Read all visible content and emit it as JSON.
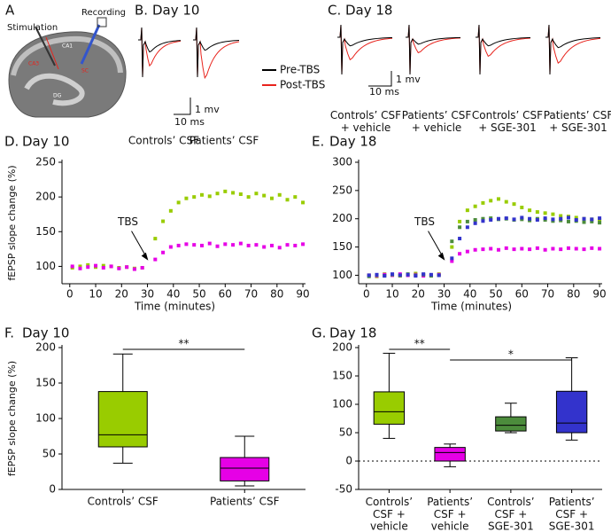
{
  "diagram": {
    "panel": "A",
    "labels": [
      "Stimulation",
      "Recording",
      "CA1",
      "SC",
      "CA3",
      "DG"
    ]
  },
  "traces": [
    {
      "panel": "B.",
      "day": "Day 10",
      "scale_y": "1 mv",
      "scale_x": "10 ms",
      "conditions": [
        "Controls’ CSF",
        "Patients’ CSF"
      ],
      "legend": [
        {
          "name": "Pre-TBS",
          "color": "#000000"
        },
        {
          "name": "Post-TBS",
          "color": "#e8231c"
        }
      ]
    },
    {
      "panel": "C.",
      "day": "Day 18",
      "scale_y": "1 mv",
      "scale_x": "10 ms",
      "conditions": [
        "Controls’ CSF\n+ vehicle",
        "Patients’ CSF\n+ vehicle",
        "Controls’ CSF\n+ SGE-301",
        "Patients’ CSF\n+ SGE-301"
      ]
    }
  ],
  "chart_data": [
    {
      "type": "scatter",
      "panel": "D.",
      "title": "Day 10",
      "ylabel": "fEPSP slope change (%)",
      "xlabel": "Time (minutes)",
      "annotation": "TBS",
      "x": [
        1,
        4,
        7,
        10,
        13,
        16,
        19,
        22,
        25,
        28,
        33,
        36,
        39,
        42,
        45,
        48,
        51,
        54,
        57,
        60,
        63,
        66,
        69,
        72,
        75,
        78,
        81,
        84,
        87,
        90
      ],
      "series": [
        {
          "color": "#99cc00",
          "values": [
            98,
            100,
            102,
            99,
            101,
            100,
            98,
            99,
            97,
            98,
            140,
            165,
            180,
            192,
            198,
            200,
            203,
            201,
            205,
            208,
            206,
            204,
            200,
            205,
            202,
            198,
            203,
            196,
            200,
            192
          ]
        },
        {
          "color": "#e600e6",
          "values": [
            100,
            97,
            99,
            101,
            98,
            100,
            97,
            99,
            96,
            98,
            110,
            120,
            128,
            130,
            132,
            131,
            130,
            133,
            129,
            132,
            131,
            133,
            130,
            131,
            128,
            130,
            127,
            131,
            130,
            132
          ]
        }
      ],
      "xlim": [
        -3,
        91
      ],
      "xticks": [
        0,
        10,
        20,
        30,
        40,
        50,
        60,
        70,
        80,
        90
      ],
      "ylim": [
        75,
        250
      ],
      "yticks": [
        100,
        150,
        200,
        250
      ]
    },
    {
      "type": "scatter",
      "panel": "E.",
      "title": "Day 18",
      "xlabel": "Time (minutes)",
      "annotation": "TBS",
      "x": [
        1,
        4,
        7,
        10,
        13,
        16,
        19,
        22,
        25,
        28,
        33,
        36,
        39,
        42,
        45,
        48,
        51,
        54,
        57,
        60,
        63,
        66,
        69,
        72,
        75,
        78,
        81,
        84,
        87,
        90
      ],
      "series": [
        {
          "color": "#99cc00",
          "values": [
            100,
            98,
            102,
            101,
            99,
            100,
            103,
            101,
            100,
            102,
            150,
            195,
            215,
            222,
            228,
            232,
            235,
            230,
            226,
            220,
            215,
            212,
            210,
            208,
            205,
            204,
            202,
            200,
            199,
            198
          ]
        },
        {
          "color": "#e600e6",
          "values": [
            100,
            99,
            101,
            100,
            102,
            100,
            101,
            99,
            100,
            101,
            125,
            138,
            142,
            145,
            146,
            147,
            145,
            148,
            146,
            147,
            146,
            148,
            145,
            147,
            146,
            148,
            147,
            146,
            148,
            147
          ]
        },
        {
          "color": "#4c8c3c",
          "values": [
            98,
            100,
            99,
            101,
            100,
            102,
            100,
            101,
            99,
            100,
            160,
            185,
            195,
            198,
            200,
            201,
            199,
            200,
            198,
            199,
            197,
            200,
            198,
            196,
            197,
            195,
            196,
            194,
            195,
            193
          ]
        },
        {
          "color": "#3333cc",
          "values": [
            100,
            101,
            99,
            102,
            100,
            101,
            99,
            102,
            101,
            100,
            130,
            165,
            185,
            192,
            196,
            198,
            200,
            201,
            199,
            202,
            200,
            198,
            201,
            199,
            200,
            202,
            198,
            200,
            199,
            201
          ]
        }
      ],
      "xlim": [
        -3,
        91
      ],
      "xticks": [
        0,
        10,
        20,
        30,
        40,
        50,
        60,
        70,
        80,
        90
      ],
      "ylim": [
        85,
        300
      ],
      "yticks": [
        100,
        150,
        200,
        250,
        300
      ]
    },
    {
      "type": "box",
      "panel": "F.",
      "title": "Day 10",
      "ylabel": "fEPSP slope change (%)",
      "categories": [
        "Controls’ CSF",
        "Patients’ CSF"
      ],
      "boxes": [
        {
          "color": "#99cc00",
          "min": 37,
          "q1": 60,
          "median": 77,
          "q3": 138,
          "max": 191
        },
        {
          "color": "#e600e6",
          "min": 5,
          "q1": 12,
          "median": 30,
          "q3": 45,
          "max": 75
        }
      ],
      "annotations": [
        "**"
      ],
      "ylim": [
        0,
        200
      ],
      "yticks": [
        0,
        50,
        100,
        150,
        200
      ]
    },
    {
      "type": "box",
      "panel": "G.",
      "title": "Day 18",
      "categories": [
        "Controls’\nCSF +\nvehicle",
        "Patients’\nCSF +\nvehicle",
        "Controls’\nCSF +\nSGE-301",
        "Patients’\nCSF +\nSGE-301"
      ],
      "boxes": [
        {
          "color": "#99cc00",
          "min": 40,
          "q1": 65,
          "median": 87,
          "q3": 122,
          "max": 190
        },
        {
          "color": "#e600e6",
          "min": -10,
          "q1": 0,
          "median": 15,
          "q3": 24,
          "max": 30
        },
        {
          "color": "#4c8c3c",
          "min": 50,
          "q1": 53,
          "median": 63,
          "q3": 78,
          "max": 102
        },
        {
          "color": "#3333cc",
          "min": 37,
          "q1": 50,
          "median": 67,
          "q3": 123,
          "max": 182
        }
      ],
      "annotations": [
        "**",
        "*"
      ],
      "zero_line": true,
      "ylim": [
        -50,
        200
      ],
      "yticks": [
        -50,
        0,
        50,
        100,
        150,
        200
      ]
    }
  ]
}
